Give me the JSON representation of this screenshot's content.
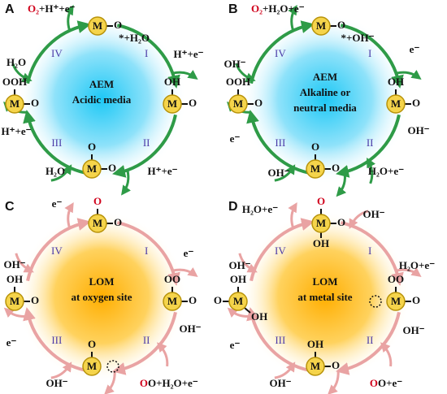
{
  "panels": [
    {
      "label": "A",
      "center": [
        "AEM",
        "Acidic media"
      ],
      "steps": [
        "I",
        "II",
        "III",
        "IV"
      ],
      "species": [
        "O₂",
        "+H⁺+e⁻",
        "*+H₂O",
        "H⁺+e⁻",
        "H₂O",
        "H⁺+e⁻",
        "H₂O",
        "H⁺+e⁻"
      ],
      "molecules": [
        {
          "metal": "M",
          "ligands": [
            "O"
          ]
        },
        {
          "metal": "M",
          "ligands": [
            "OH",
            "O"
          ]
        },
        {
          "metal": "M",
          "ligands": [
            "O",
            "O"
          ]
        },
        {
          "metal": "M",
          "ligands": [
            "OOH",
            "O"
          ]
        }
      ]
    },
    {
      "label": "B",
      "center": [
        "AEM",
        "Alkaline or",
        "neutral media"
      ],
      "steps": [
        "I",
        "II",
        "III",
        "IV"
      ],
      "species": [
        "O₂",
        "+H₂O+e⁻",
        "*+OH⁻",
        "e⁻",
        "OH⁻",
        "OH⁻",
        "e⁻",
        "OH⁻",
        "H₂O+e⁻"
      ],
      "molecules": [
        {
          "metal": "M",
          "ligands": [
            "O"
          ]
        },
        {
          "metal": "M",
          "ligands": [
            "OH",
            "O"
          ]
        },
        {
          "metal": "M",
          "ligands": [
            "O",
            "O"
          ]
        },
        {
          "metal": "M",
          "ligands": [
            "OOH",
            "O"
          ]
        }
      ]
    },
    {
      "label": "C",
      "center": [
        "LOM",
        "at oxygen site"
      ],
      "steps": [
        "I",
        "II",
        "III",
        "IV"
      ],
      "species": [
        "e⁻",
        "e⁻",
        "OH⁻",
        "OH⁻",
        "e⁻",
        "OH⁻",
        "O",
        "O+H₂O+e⁻"
      ],
      "molecules": [
        {
          "metal": "M",
          "ligands": [
            "O",
            "O"
          ]
        },
        {
          "metal": "M",
          "ligands": [
            "OO",
            "O"
          ]
        },
        {
          "metal": "M",
          "ligands": [
            "O"
          ]
        },
        {
          "metal": "M",
          "ligands": [
            "OH",
            "O"
          ]
        }
      ]
    },
    {
      "label": "D",
      "center": [
        "LOM",
        "at metal site"
      ],
      "steps": [
        "I",
        "II",
        "III",
        "IV"
      ],
      "species": [
        "H₂O+e⁻",
        "OH⁻",
        "OH⁻",
        "H₂O+e⁻",
        "OH⁻",
        "e⁻",
        "OH⁻",
        "O",
        "O+e⁻"
      ],
      "molecules": [
        {
          "metal": "M",
          "ligands": [
            "O",
            "OH",
            "O"
          ]
        },
        {
          "metal": "M",
          "ligands": [
            "OO",
            "O"
          ]
        },
        {
          "metal": "M",
          "ligands": [
            "OH",
            "O"
          ]
        },
        {
          "metal": "M",
          "ligands": [
            "OH",
            "O",
            "OH"
          ]
        }
      ]
    }
  ]
}
